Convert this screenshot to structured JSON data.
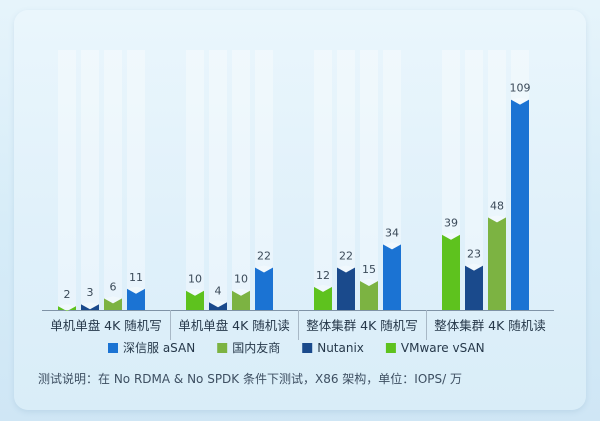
{
  "chart_data": {
    "type": "bar",
    "categories": [
      "单机单盘 4K 随机写",
      "单机单盘 4K 随机读",
      "整体集群 4K 随机写",
      "整体集群 4K 随机读"
    ],
    "series": [
      {
        "name": "VMware vSAN",
        "values": [
          2,
          10,
          12,
          39
        ]
      },
      {
        "name": "Nutanix",
        "values": [
          3,
          4,
          22,
          23
        ]
      },
      {
        "name": "国内友商",
        "values": [
          6,
          10,
          15,
          48
        ]
      },
      {
        "name": "深信服 aSAN",
        "values": [
          11,
          22,
          34,
          109
        ]
      }
    ],
    "legend_order": [
      "深信服 aSAN",
      "国内友商",
      "Nutanix",
      "VMware vSAN"
    ],
    "colors": {
      "VMware vSAN": "#5ec21e",
      "Nutanix": "#1a4a8c",
      "国内友商": "#7cb342",
      "深信服 aSAN": "#1b73d3"
    },
    "ylim": [
      0,
      115
    ],
    "title": "",
    "xlabel": "",
    "ylabel": "",
    "legend_position": "bottom",
    "grid": false
  },
  "footnote": "测试说明：在 No RDMA & No SPDK 条件下测试，X86 架构，单位：IOPS/ 万"
}
